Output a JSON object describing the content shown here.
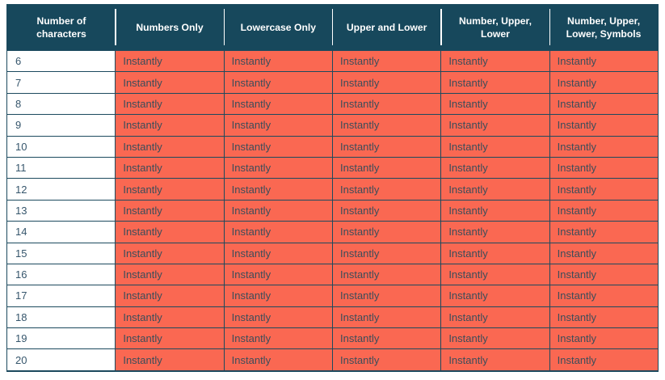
{
  "chart_data": {
    "type": "table",
    "title": "",
    "columns": [
      "Number of characters",
      "Numbers Only",
      "Lowercase Only",
      "Upper and Lower",
      "Number, Upper, Lower",
      "Number, Upper, Lower, Symbols"
    ],
    "rows": [
      [
        "6",
        "Instantly",
        "Instantly",
        "Instantly",
        "Instantly",
        "Instantly"
      ],
      [
        "7",
        "Instantly",
        "Instantly",
        "Instantly",
        "Instantly",
        "Instantly"
      ],
      [
        "8",
        "Instantly",
        "Instantly",
        "Instantly",
        "Instantly",
        "Instantly"
      ],
      [
        "9",
        "Instantly",
        "Instantly",
        "Instantly",
        "Instantly",
        "Instantly"
      ],
      [
        "10",
        "Instantly",
        "Instantly",
        "Instantly",
        "Instantly",
        "Instantly"
      ],
      [
        "11",
        "Instantly",
        "Instantly",
        "Instantly",
        "Instantly",
        "Instantly"
      ],
      [
        "12",
        "Instantly",
        "Instantly",
        "Instantly",
        "Instantly",
        "Instantly"
      ],
      [
        "13",
        "Instantly",
        "Instantly",
        "Instantly",
        "Instantly",
        "Instantly"
      ],
      [
        "14",
        "Instantly",
        "Instantly",
        "Instantly",
        "Instantly",
        "Instantly"
      ],
      [
        "15",
        "Instantly",
        "Instantly",
        "Instantly",
        "Instantly",
        "Instantly"
      ],
      [
        "16",
        "Instantly",
        "Instantly",
        "Instantly",
        "Instantly",
        "Instantly"
      ],
      [
        "17",
        "Instantly",
        "Instantly",
        "Instantly",
        "Instantly",
        "Instantly"
      ],
      [
        "18",
        "Instantly",
        "Instantly",
        "Instantly",
        "Instantly",
        "Instantly"
      ],
      [
        "19",
        "Instantly",
        "Instantly",
        "Instantly",
        "Instantly",
        "Instantly"
      ],
      [
        "20",
        "Instantly",
        "Instantly",
        "Instantly",
        "Instantly",
        "Instantly"
      ]
    ]
  },
  "colors": {
    "header_bg": "#17485c",
    "header_text": "#ffffff",
    "cell_bg": "#fa6852",
    "cell_text": "#3b4d5a",
    "number_text": "#36566c",
    "grid_border": "#1c4a5e",
    "page_bg": "#ffffff"
  }
}
